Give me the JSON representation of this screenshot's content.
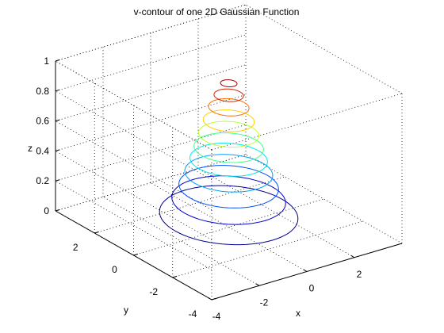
{
  "chart_data": {
    "type": "contour3",
    "title": "v-contour of one 2D Gaussian Function",
    "xlabel": "x",
    "ylabel": "y",
    "zlabel": "z",
    "xlim": [
      -4,
      4
    ],
    "ylim": [
      -4,
      4
    ],
    "zlim": [
      0,
      1
    ],
    "xticks": [
      "-4",
      "-2",
      "0",
      "2"
    ],
    "yticks": [
      "-4",
      "-2",
      "0",
      "2"
    ],
    "zticks": [
      "0",
      "0.2",
      "0.4",
      "0.6",
      "0.8",
      "1"
    ],
    "grid": true,
    "colormap": "jet",
    "levels": [
      {
        "z": 0.08,
        "radius": 2.25,
        "color": "#00008f"
      },
      {
        "z": 0.18,
        "radius": 1.85,
        "color": "#0000d0"
      },
      {
        "z": 0.27,
        "radius": 1.62,
        "color": "#0050ff"
      },
      {
        "z": 0.36,
        "radius": 1.43,
        "color": "#00a0ff"
      },
      {
        "z": 0.45,
        "radius": 1.26,
        "color": "#00e8e8"
      },
      {
        "z": 0.53,
        "radius": 1.13,
        "color": "#40ff90"
      },
      {
        "z": 0.62,
        "radius": 0.98,
        "color": "#c0ff30"
      },
      {
        "z": 0.71,
        "radius": 0.83,
        "color": "#ffd000"
      },
      {
        "z": 0.8,
        "radius": 0.66,
        "color": "#ff7000"
      },
      {
        "z": 0.88,
        "radius": 0.48,
        "color": "#e02000"
      },
      {
        "z": 0.96,
        "radius": 0.27,
        "color": "#a00000"
      }
    ]
  }
}
